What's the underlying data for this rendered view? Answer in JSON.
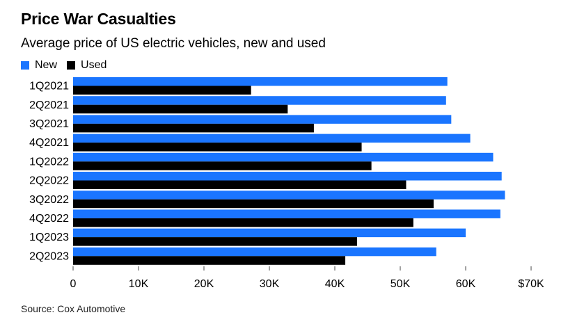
{
  "header": {
    "title": "Price War Casualties",
    "subtitle": "Average price of US electric vehicles, new and used"
  },
  "source": "Source: Cox Automotive",
  "colors": {
    "new": "#1a75ff",
    "used": "#000000",
    "axis": "#444444"
  },
  "chart_data": {
    "type": "bar",
    "orientation": "horizontal",
    "categories": [
      "1Q2021",
      "2Q2021",
      "3Q2021",
      "4Q2021",
      "1Q2022",
      "2Q2022",
      "3Q2022",
      "4Q2022",
      "1Q2023",
      "2Q2023"
    ],
    "series": [
      {
        "name": "New",
        "values": [
          57200,
          57000,
          57800,
          60700,
          64200,
          65500,
          66000,
          65300,
          60000,
          55500
        ]
      },
      {
        "name": "Used",
        "values": [
          27200,
          32800,
          36800,
          44100,
          45600,
          50900,
          55100,
          52000,
          43400,
          41600
        ]
      }
    ],
    "xlim": [
      0,
      70000
    ],
    "xticks": [
      0,
      10000,
      20000,
      30000,
      40000,
      50000,
      60000,
      70000
    ],
    "xtick_labels": [
      "0",
      "10K",
      "20K",
      "30K",
      "40K",
      "50K",
      "60K",
      "$70K"
    ],
    "legend_position": "top-left",
    "grid": false
  }
}
